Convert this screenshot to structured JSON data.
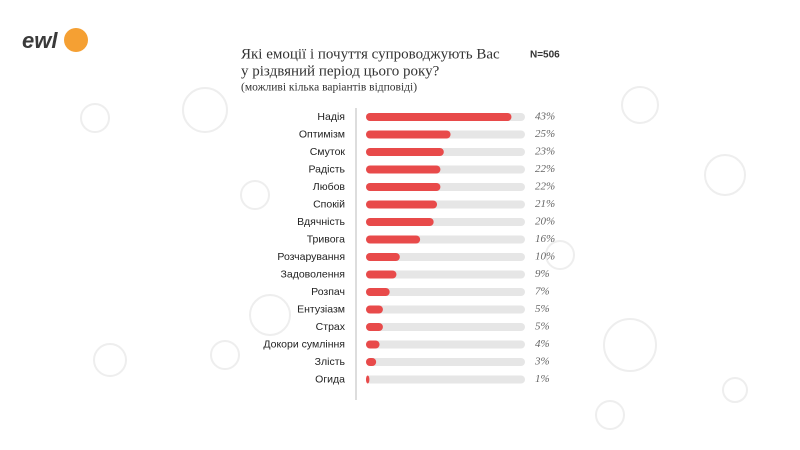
{
  "logo": "ewl",
  "chart_data": {
    "type": "bar",
    "orientation": "horizontal",
    "title": [
      "Які емоції і почуття супроводжують Вас",
      "у різдвяний період цього року?"
    ],
    "subtitle": "(можливі кілька варіантів відповіді)",
    "annotation": "N=506",
    "categories": [
      "Надія",
      "Оптимізм",
      "Смуток",
      "Радість",
      "Любов",
      "Спокій",
      "Вдячність",
      "Тривога",
      "Розчарування",
      "Задоволення",
      "Розпач",
      "Ентузіазм",
      "Страх",
      "Докори сумління",
      "Злість",
      "Огида"
    ],
    "values": [
      43,
      25,
      23,
      22,
      22,
      21,
      20,
      16,
      10,
      9,
      7,
      5,
      5,
      4,
      3,
      1
    ],
    "value_labels": [
      "43%",
      "25%",
      "23%",
      "22%",
      "22%",
      "21%",
      "20%",
      "16%",
      "10%",
      "9%",
      "7%",
      "5%",
      "5%",
      "4%",
      "3%",
      "1%"
    ],
    "color": "#e84a4a",
    "track_color": "#e6e6e6",
    "xlim": [
      0,
      47
    ]
  }
}
